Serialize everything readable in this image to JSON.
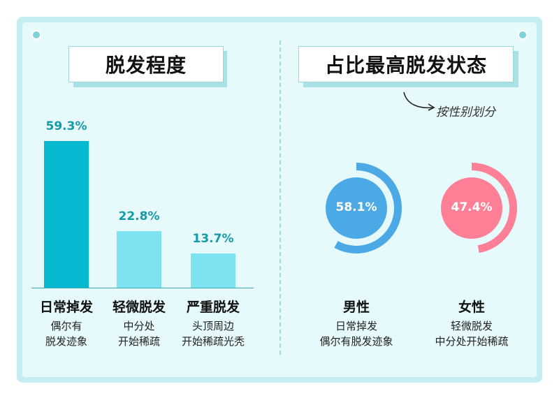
{
  "left_title": "脱发程度",
  "right_title": "占比最高脱发状态",
  "note": "按性别划分",
  "icons": {
    "arrow": "curved-arrow-icon"
  },
  "chart_data": [
    {
      "type": "bar",
      "title": "脱发程度",
      "categories": [
        "日常掉发",
        "轻微脱发",
        "严重脱发"
      ],
      "values": [
        59.3,
        22.8,
        13.7
      ],
      "value_labels": [
        "59.3%",
        "22.8%",
        "13.7%"
      ],
      "descriptions": [
        [
          "偶尔有",
          "脱发迹象"
        ],
        [
          "中分处",
          "开始稀疏"
        ],
        [
          "头顶周边",
          "开始稀疏光秃"
        ]
      ],
      "colors": [
        "#06b8d0",
        "#7de3f1",
        "#7de3f1"
      ],
      "ylim": [
        0,
        59.3
      ],
      "grid": false
    },
    {
      "type": "pie",
      "title": "占比最高脱发状态",
      "series": [
        {
          "name": "男性",
          "value": 58.1,
          "label": "58.1%",
          "color": "#4baae6",
          "lines": [
            "日常掉发",
            "偶尔有脱发迹象"
          ]
        },
        {
          "name": "女性",
          "value": 47.4,
          "label": "47.4%",
          "color": "#ff8096",
          "lines": [
            "轻微脱发",
            "中分处开始稀疏"
          ]
        }
      ]
    }
  ]
}
